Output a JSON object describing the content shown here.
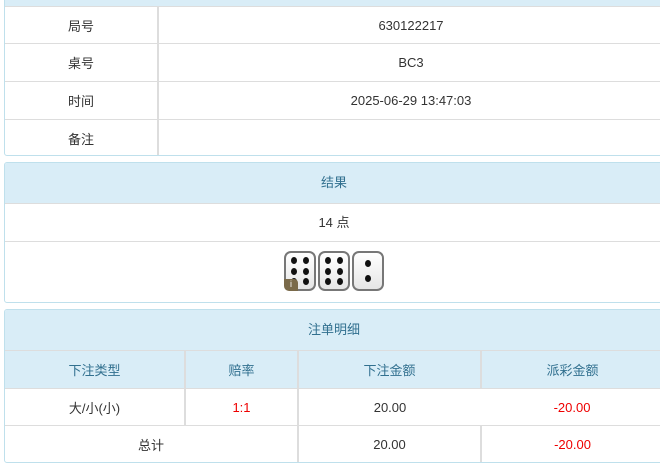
{
  "info": {
    "rows": [
      {
        "label": "局号",
        "value": "630122217"
      },
      {
        "label": "桌号",
        "value": "BC3"
      },
      {
        "label": "时间",
        "value": "2025-06-29 13:47:03"
      },
      {
        "label": "备注",
        "value": ""
      }
    ]
  },
  "result": {
    "title": "结果",
    "points": "14 点",
    "dice": [
      6,
      6,
      2
    ],
    "info_icon": "i"
  },
  "bets": {
    "title": "注单明细",
    "headers": [
      "下注类型",
      "赔率",
      "下注金额",
      "派彩金额"
    ],
    "rows": [
      {
        "type": "大/小(小)",
        "odds": "1:1",
        "amount": "20.00",
        "payout": "-20.00"
      }
    ],
    "total": {
      "label": "总计",
      "amount": "20.00",
      "payout": "-20.00"
    },
    "accent_red": "#e00000"
  }
}
